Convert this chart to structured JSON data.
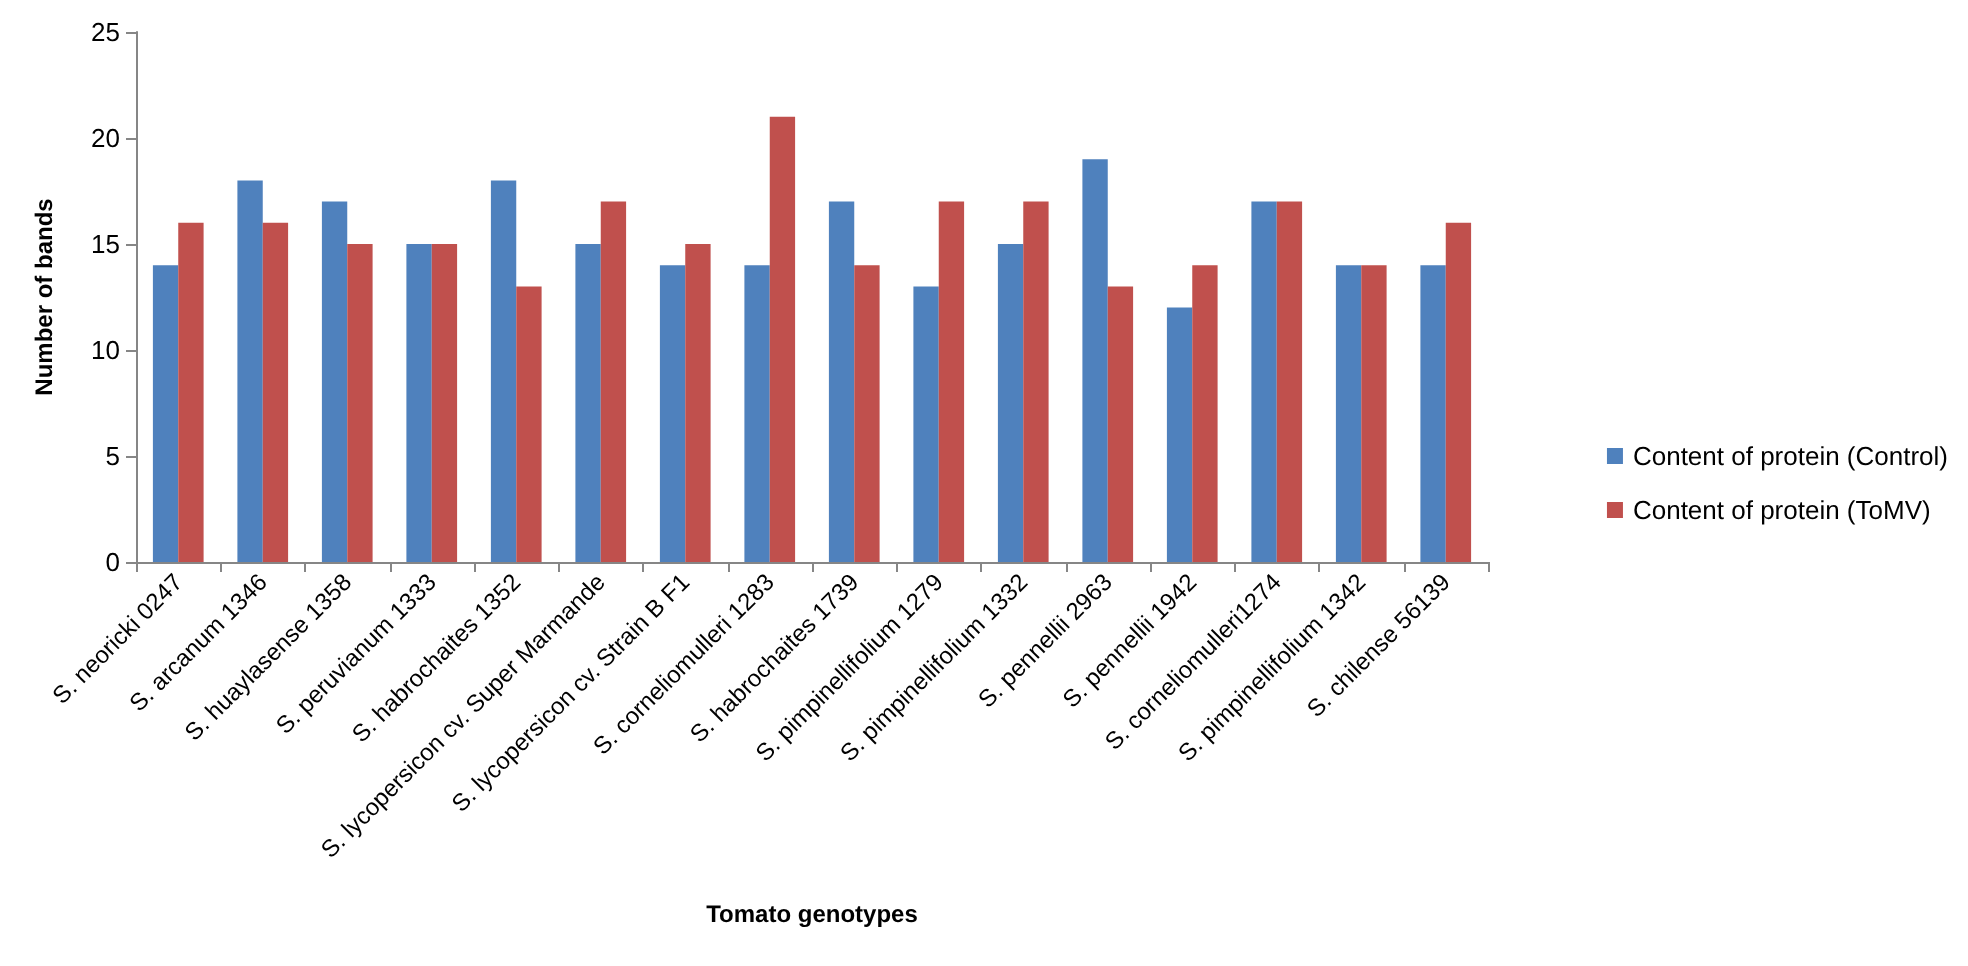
{
  "chart_data": {
    "type": "bar",
    "xlabel": "Tomato genotypes",
    "ylabel": "Number of bands",
    "categories": [
      "S. neoricki 0247",
      "S. arcanum 1346",
      "S. huaylasense 1358",
      "S. peruvianum 1333",
      "S. habrochaites 1352",
      "S. lycopersicon cv. Super Marmande",
      "S. lycopersicon cv. Strain B F1",
      "S. corneliomulleri 1283",
      "S. habrochaites 1739",
      "S. pimpinellifolium 1279",
      "S. pimpinellifolium 1332",
      "S. pennellii 2963",
      "S. pennellii 1942",
      "S. corneliomulleri1274",
      "S. pimpinellifolium 1342",
      "S. chilense 56139"
    ],
    "series": [
      {
        "name": "Content of protein (Control)",
        "color": "#4f81bd",
        "values": [
          14,
          18,
          17,
          15,
          18,
          15,
          14,
          14,
          17,
          13,
          15,
          19,
          12,
          17,
          14,
          14
        ]
      },
      {
        "name": "Content of protein (ToMV)",
        "color": "#c0504d",
        "values": [
          16,
          16,
          15,
          15,
          13,
          17,
          15,
          21,
          14,
          17,
          17,
          13,
          14,
          17,
          14,
          16
        ]
      }
    ],
    "ylim": [
      0,
      25
    ],
    "yticks": [
      0,
      5,
      10,
      15,
      20,
      25
    ],
    "grid": false,
    "legend": "right"
  }
}
